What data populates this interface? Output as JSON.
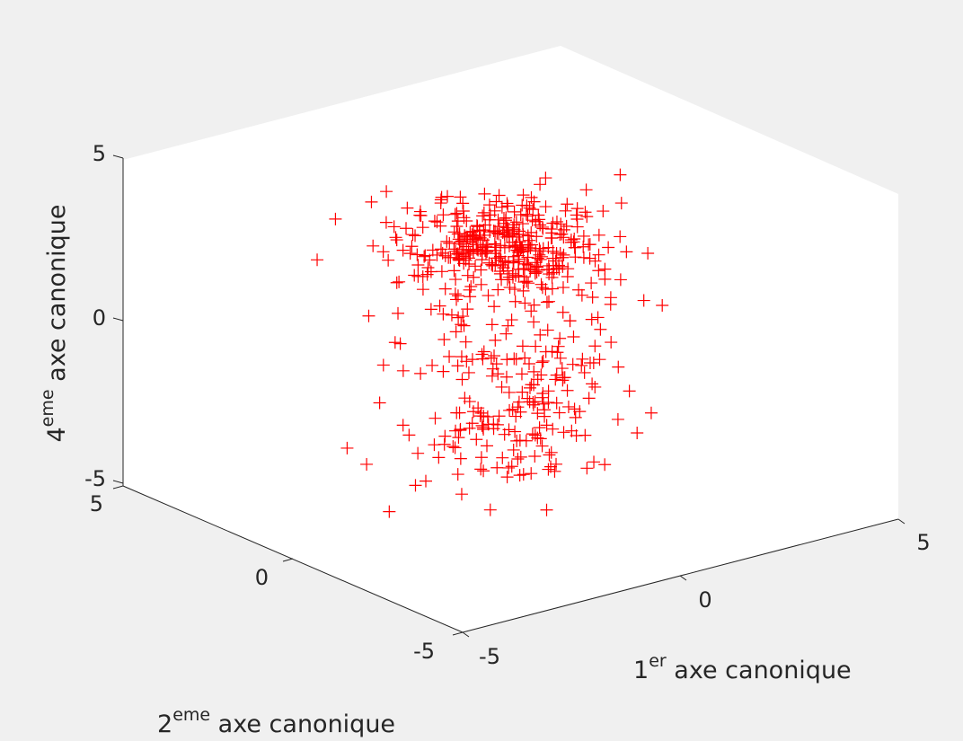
{
  "chart_data": {
    "type": "scatter",
    "projection": "3d",
    "marker": "+",
    "marker_color": "#ff0000",
    "background_color": "#f0f0f0",
    "pane_color": "#ffffff",
    "grid": false,
    "xlim": [
      -5,
      5
    ],
    "ylim": [
      -5,
      5
    ],
    "zlim": [
      -5,
      5
    ],
    "x_ticks": [
      "-5",
      "0",
      "5"
    ],
    "y_ticks": [
      "-5",
      "0",
      "5"
    ],
    "z_ticks": [
      "-5",
      "0",
      "5"
    ],
    "xlabel": {
      "base": "1",
      "sup": "er",
      "rest": " axe canonique"
    },
    "ylabel": {
      "base": "2",
      "sup": "eme",
      "rest": " axe canonique"
    },
    "zlabel": {
      "base": "4",
      "sup": "eme",
      "rest": " axe canonique"
    },
    "clusters": [
      {
        "x_mean": -0.6,
        "x_sd": 1.0,
        "y_mean": -0.6,
        "y_sd": 1.0,
        "z_mean": 3.3,
        "z_sd": 0.55,
        "count": 380
      },
      {
        "x_mean": -0.6,
        "x_sd": 1.0,
        "y_mean": -0.6,
        "y_sd": 1.0,
        "z_mean": 0.3,
        "z_sd": 0.9,
        "count": 90
      },
      {
        "x_mean": -0.6,
        "x_sd": 1.0,
        "y_mean": -0.6,
        "y_sd": 1.0,
        "z_mean": -2.3,
        "z_sd": 0.9,
        "count": 130
      }
    ]
  }
}
